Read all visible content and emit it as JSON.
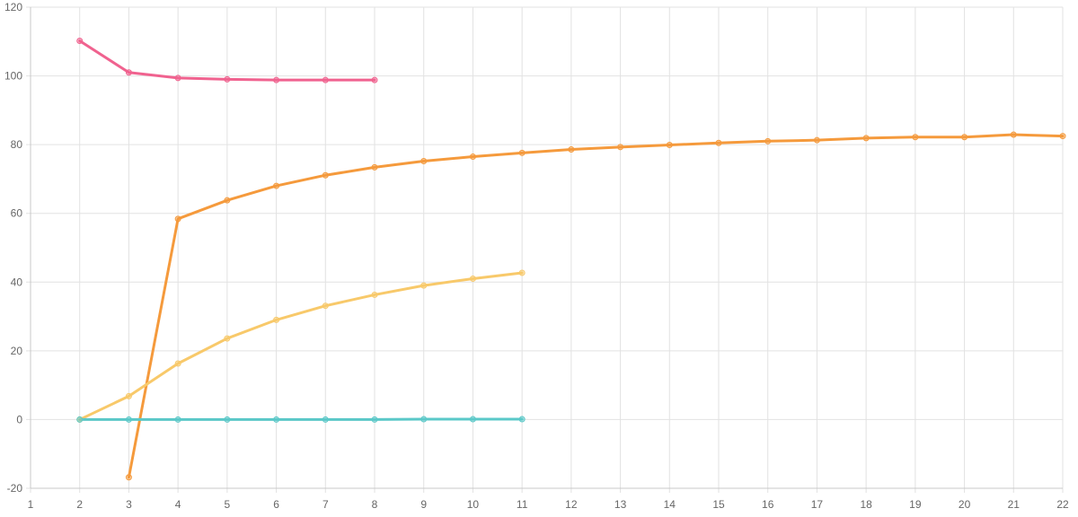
{
  "chart_data": {
    "type": "line",
    "title": "",
    "xlabel": "",
    "ylabel": "",
    "xlim": [
      1,
      22
    ],
    "ylim": [
      -20,
      120
    ],
    "x_ticks": [
      1,
      2,
      3,
      4,
      5,
      6,
      7,
      8,
      9,
      10,
      11,
      12,
      13,
      14,
      15,
      16,
      17,
      18,
      19,
      20,
      21,
      22
    ],
    "y_ticks": [
      -20,
      0,
      20,
      40,
      60,
      80,
      100,
      120
    ],
    "grid": true,
    "legend": "none",
    "series": [
      {
        "color": "#f0628f",
        "x": [
          2,
          3,
          4,
          5,
          6,
          7,
          8
        ],
        "y": [
          110.2,
          101.0,
          99.4,
          99.0,
          98.8,
          98.8,
          98.8
        ]
      },
      {
        "color": "#f59a3c",
        "x": [
          3,
          4,
          5,
          6,
          7,
          8,
          9,
          10,
          11,
          12,
          13,
          14,
          15,
          16,
          17,
          18,
          19,
          20,
          21,
          22
        ],
        "y": [
          -16.8,
          58.4,
          63.8,
          68.0,
          71.1,
          73.4,
          75.2,
          76.5,
          77.6,
          78.6,
          79.3,
          79.9,
          80.5,
          81.0,
          81.3,
          81.9,
          82.2,
          82.2,
          82.9,
          82.5
        ]
      },
      {
        "color": "#f8c96a",
        "x": [
          2,
          3,
          4,
          5,
          6,
          7,
          8,
          9,
          10,
          11
        ],
        "y": [
          0.0,
          6.8,
          16.3,
          23.6,
          29.0,
          33.1,
          36.3,
          39.0,
          41.0,
          42.7
        ]
      },
      {
        "color": "#5ac8c8",
        "x": [
          2,
          3,
          4,
          5,
          6,
          7,
          8,
          9,
          10,
          11
        ],
        "y": [
          0.0,
          0.0,
          0.0,
          0.0,
          0.0,
          0.0,
          0.0,
          0.1,
          0.1,
          0.1
        ]
      }
    ]
  }
}
